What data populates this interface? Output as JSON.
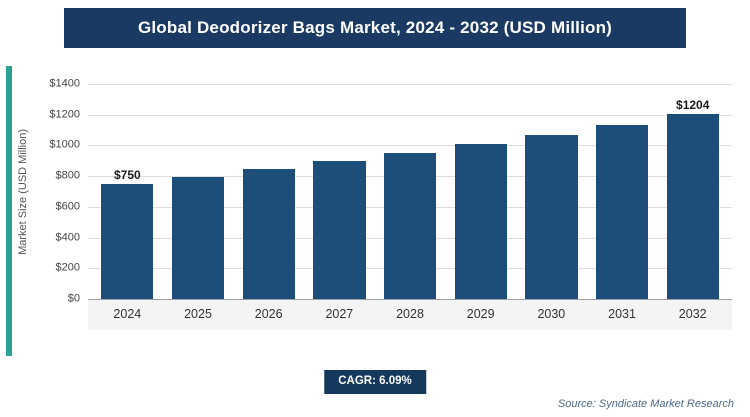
{
  "header": {
    "title": "Global Deodorizer Bags Market, 2024 - 2032 (USD Million)"
  },
  "chart_data": {
    "type": "bar",
    "title": "Global Deodorizer Bags Market, 2024 - 2032 (USD Million)",
    "categories": [
      "2024",
      "2025",
      "2026",
      "2027",
      "2028",
      "2029",
      "2030",
      "2031",
      "2032"
    ],
    "values": [
      750,
      796,
      844,
      896,
      950,
      1008,
      1069,
      1135,
      1204
    ],
    "annotations": [
      {
        "index": 0,
        "text": "$750"
      },
      {
        "index": 8,
        "text": "$1204"
      }
    ],
    "xlabel": "",
    "ylabel": "Market Size (USD Million)",
    "ylim": [
      0,
      1400
    ],
    "ytick_step": 200,
    "ytick_labels": [
      "$0",
      "$200",
      "$400",
      "$600",
      "$800",
      "$1000",
      "$1200",
      "$1400"
    ],
    "grid": true,
    "legend": false,
    "bar_color": "#1c4e79"
  },
  "footer": {
    "cagr": "CAGR: 6.09%",
    "source": "Source: Syndicate Market Research"
  },
  "colors": {
    "banner_bg": "#1a3a64",
    "badge_bg": "#14395c",
    "accent_strip": "#2fa098",
    "bar": "#1c4e79"
  }
}
